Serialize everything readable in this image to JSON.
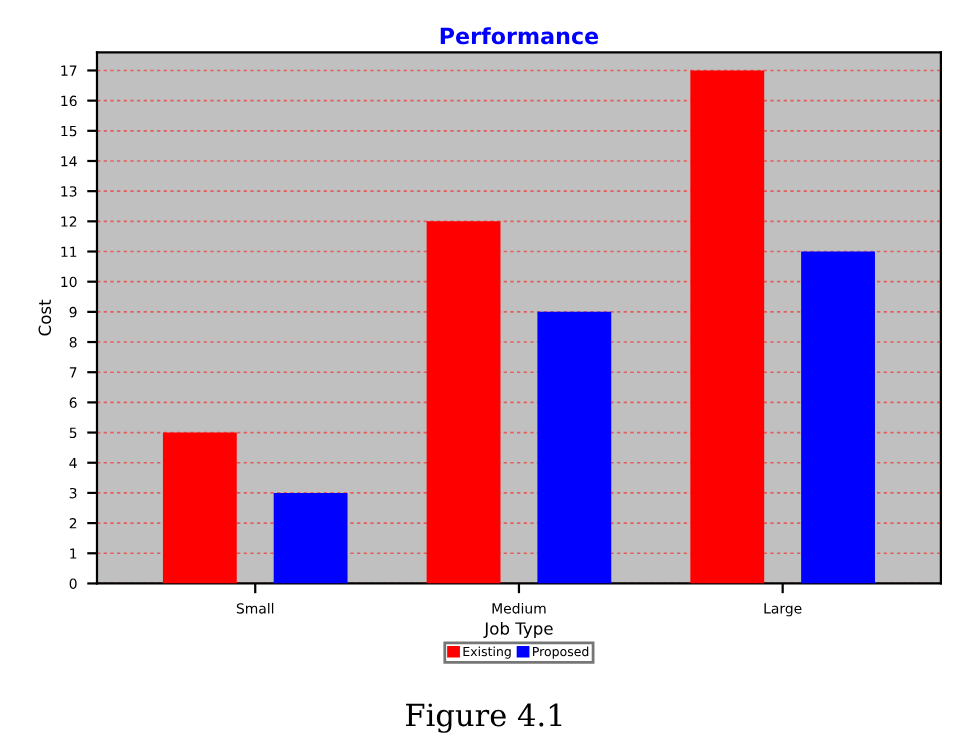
{
  "chart_data": {
    "type": "bar",
    "title": "Performance",
    "xlabel": "Job Type",
    "ylabel": "Cost",
    "categories": [
      "Small",
      "Medium",
      "Large"
    ],
    "series": [
      {
        "name": "Existing",
        "color": "#ff0000",
        "values": [
          5,
          12,
          17
        ]
      },
      {
        "name": "Proposed",
        "color": "#0000ff",
        "values": [
          3,
          9,
          11
        ]
      }
    ],
    "ylim": [
      0,
      17.6
    ],
    "yticks": [
      0,
      1,
      2,
      3,
      4,
      5,
      6,
      7,
      8,
      9,
      10,
      11,
      12,
      13,
      14,
      15,
      16,
      17
    ],
    "grid": "y",
    "legend": "bottom",
    "annotations": [
      "Figure 4.1"
    ]
  }
}
